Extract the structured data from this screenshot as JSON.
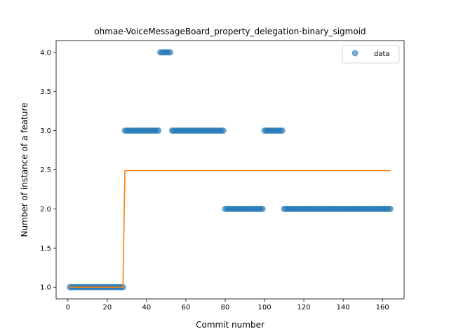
{
  "chart_data": {
    "type": "scatter",
    "title": "ohmae-VoiceMessageBoard_property_delegation-binary_sigmoid",
    "xlabel": "Commit number",
    "ylabel": "Number of instance of a feature",
    "xlim": [
      -6,
      171
    ],
    "ylim": [
      0.85,
      4.15
    ],
    "xticks": [
      0,
      20,
      40,
      60,
      80,
      100,
      120,
      140,
      160
    ],
    "yticks": [
      1.0,
      1.5,
      2.0,
      2.5,
      3.0,
      3.5,
      4.0
    ],
    "legend_position": "top-right",
    "series": [
      {
        "name": "data",
        "kind": "scatter",
        "color": "#1f77b4",
        "segments": [
          {
            "x_start": 1,
            "x_end": 28,
            "y": 1
          },
          {
            "x_start": 29,
            "x_end": 46,
            "y": 3
          },
          {
            "x_start": 47,
            "x_end": 52,
            "y": 4
          },
          {
            "x_start": 53,
            "x_end": 79,
            "y": 3
          },
          {
            "x_start": 80,
            "x_end": 99,
            "y": 2
          },
          {
            "x_start": 100,
            "x_end": 109,
            "y": 3
          },
          {
            "x_start": 110,
            "x_end": 164,
            "y": 2
          }
        ]
      },
      {
        "kind": "line",
        "color": "#ff7f0e",
        "x": [
          1,
          28,
          29,
          164
        ],
        "y": [
          1.0,
          1.0,
          2.49,
          2.49
        ]
      }
    ]
  }
}
